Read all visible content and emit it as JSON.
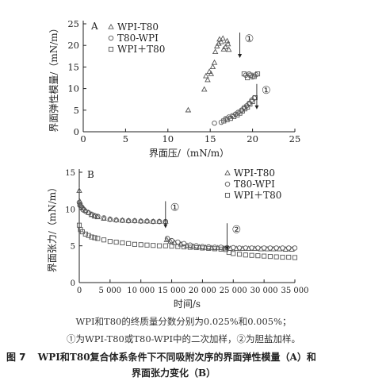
{
  "chart_data": [
    {
      "type": "scatter",
      "panel": "A",
      "xlabel": "界面压/（mN/m）",
      "ylabel": "界面弹性模量/（mN/m）",
      "xlim": [
        0,
        25
      ],
      "ylim": [
        0,
        25
      ],
      "xticks": [
        "0",
        "5",
        "10",
        "15",
        "20",
        "25"
      ],
      "yticks": [
        "0",
        "5",
        "10",
        "15",
        "20",
        "25"
      ],
      "legend_position": "top-right",
      "series": [
        {
          "name": "WPI-T80",
          "marker": "triangle",
          "points": [
            [
              12.4,
              5.0
            ],
            [
              14.3,
              9.8
            ],
            [
              14.5,
              12.9
            ],
            [
              14.7,
              12.0
            ],
            [
              14.9,
              13.9
            ],
            [
              15.1,
              13.4
            ],
            [
              15.3,
              15.0
            ],
            [
              15.5,
              16.0
            ],
            [
              15.6,
              18.5
            ],
            [
              15.8,
              19.8
            ],
            [
              16.0,
              20.4
            ],
            [
              16.1,
              21.4
            ],
            [
              16.3,
              20.8
            ],
            [
              16.5,
              21.6
            ],
            [
              16.6,
              19.1
            ],
            [
              16.8,
              19.6
            ],
            [
              17.0,
              21.0
            ],
            [
              17.1,
              20.3
            ],
            [
              17.2,
              19.0
            ]
          ]
        },
        {
          "name": "T80-WPI",
          "marker": "circle",
          "points": [
            [
              15.5,
              2.0
            ],
            [
              16.3,
              2.2
            ],
            [
              16.8,
              3.0
            ],
            [
              17.2,
              3.4
            ],
            [
              17.6,
              3.7
            ],
            [
              18.0,
              4.1
            ],
            [
              18.3,
              4.5
            ],
            [
              18.7,
              5.0
            ],
            [
              19.0,
              5.6
            ],
            [
              19.3,
              6.0
            ],
            [
              19.6,
              6.6
            ],
            [
              19.9,
              7.3
            ],
            [
              20.2,
              7.8
            ],
            [
              19.2,
              13.1
            ],
            [
              19.6,
              13.4
            ],
            [
              20.0,
              12.7
            ],
            [
              20.4,
              13.2
            ]
          ]
        },
        {
          "name": "WPI＋T80",
          "marker": "square",
          "points": [
            [
              16.6,
              2.5
            ],
            [
              17.0,
              2.8
            ],
            [
              17.4,
              3.1
            ],
            [
              17.8,
              3.5
            ],
            [
              18.2,
              3.9
            ],
            [
              18.5,
              4.3
            ],
            [
              18.8,
              4.8
            ],
            [
              19.1,
              5.3
            ],
            [
              19.4,
              5.7
            ],
            [
              19.7,
              6.4
            ],
            [
              20.0,
              7.0
            ],
            [
              20.3,
              7.9
            ],
            [
              19.0,
              13.4
            ],
            [
              19.4,
              12.5
            ],
            [
              19.8,
              13.1
            ],
            [
              20.2,
              12.8
            ],
            [
              20.6,
              13.4
            ]
          ]
        }
      ],
      "annotations": [
        {
          "text": "①",
          "x": 18.5,
          "y": 21.5
        },
        {
          "text": "①",
          "x": 20.5,
          "y": 9.6
        }
      ]
    },
    {
      "type": "scatter",
      "panel": "B",
      "xlabel": "时间/s",
      "ylabel": "界面张力/（mN/m）",
      "xlim": [
        0,
        35000
      ],
      "ylim": [
        0,
        15
      ],
      "xticks": [
        "0",
        "5 000",
        "10 000",
        "15 000",
        "20 000",
        "25 000",
        "30 000",
        "35 000"
      ],
      "yticks": [
        "0",
        "5",
        "10",
        "15"
      ],
      "legend_position": "top-right",
      "series": [
        {
          "name": "WPI-T80",
          "marker": "triangle",
          "points": [
            [
              0,
              12.5
            ],
            [
              100,
              11.0
            ],
            [
              200,
              10.6
            ],
            [
              400,
              10.4
            ],
            [
              700,
              10.1
            ],
            [
              1000,
              9.8
            ],
            [
              1500,
              9.5
            ],
            [
              2000,
              9.2
            ],
            [
              2500,
              9.0
            ],
            [
              3000,
              8.9
            ],
            [
              4000,
              8.7
            ],
            [
              5000,
              8.6
            ],
            [
              6000,
              8.5
            ],
            [
              7000,
              8.45
            ],
            [
              8000,
              8.4
            ],
            [
              9000,
              8.4
            ],
            [
              10000,
              8.35
            ],
            [
              11000,
              8.35
            ],
            [
              12000,
              8.3
            ],
            [
              13000,
              8.3
            ],
            [
              14000,
              8.3
            ],
            [
              14200,
              5.8
            ],
            [
              14800,
              5.6
            ],
            [
              15500,
              5.4
            ],
            [
              16500,
              5.2
            ],
            [
              17500,
              5.0
            ],
            [
              18500,
              4.9
            ],
            [
              19500,
              4.8
            ],
            [
              20500,
              4.75
            ],
            [
              21500,
              4.7
            ],
            [
              22500,
              4.7
            ],
            [
              23500,
              4.65
            ],
            [
              24500,
              4.6
            ],
            [
              25500,
              4.6
            ],
            [
              26500,
              4.6
            ],
            [
              27500,
              4.6
            ],
            [
              28500,
              4.6
            ],
            [
              29500,
              4.55
            ],
            [
              30500,
              4.55
            ],
            [
              31500,
              4.55
            ],
            [
              32500,
              4.55
            ],
            [
              33500,
              4.5
            ],
            [
              34500,
              4.5
            ]
          ]
        },
        {
          "name": "T80-WPI",
          "marker": "circle",
          "points": [
            [
              0,
              10.9
            ],
            [
              100,
              10.5
            ],
            [
              300,
              10.2
            ],
            [
              600,
              9.9
            ],
            [
              1000,
              9.7
            ],
            [
              1500,
              9.5
            ],
            [
              2000,
              9.3
            ],
            [
              2500,
              9.1
            ],
            [
              3000,
              9.0
            ],
            [
              4000,
              8.8
            ],
            [
              5000,
              8.6
            ],
            [
              6000,
              8.5
            ],
            [
              7000,
              8.45
            ],
            [
              8000,
              8.4
            ],
            [
              9000,
              8.4
            ],
            [
              10000,
              8.35
            ],
            [
              11000,
              8.35
            ],
            [
              12000,
              8.3
            ],
            [
              13000,
              8.3
            ],
            [
              14000,
              8.3
            ],
            [
              14300,
              6.0
            ],
            [
              15000,
              5.7
            ],
            [
              16000,
              5.5
            ],
            [
              17000,
              5.3
            ],
            [
              18000,
              5.1
            ],
            [
              19000,
              5.0
            ],
            [
              20000,
              4.9
            ],
            [
              21000,
              4.85
            ],
            [
              22000,
              4.8
            ],
            [
              23000,
              4.8
            ],
            [
              24000,
              4.75
            ],
            [
              25000,
              4.75
            ],
            [
              26000,
              4.7
            ],
            [
              27000,
              4.7
            ],
            [
              28000,
              4.7
            ],
            [
              29000,
              4.7
            ],
            [
              30000,
              4.7
            ],
            [
              31000,
              4.7
            ],
            [
              32000,
              4.7
            ],
            [
              33000,
              4.7
            ],
            [
              34000,
              4.7
            ],
            [
              35000,
              4.7
            ]
          ]
        },
        {
          "name": "WPI＋T80",
          "marker": "square",
          "points": [
            [
              0,
              7.8
            ],
            [
              200,
              7.2
            ],
            [
              500,
              6.9
            ],
            [
              1000,
              6.6
            ],
            [
              1500,
              6.4
            ],
            [
              2000,
              6.2
            ],
            [
              2500,
              6.1
            ],
            [
              3000,
              6.0
            ],
            [
              4000,
              5.8
            ],
            [
              5000,
              5.6
            ],
            [
              6000,
              5.5
            ],
            [
              7000,
              5.4
            ],
            [
              8000,
              5.3
            ],
            [
              9000,
              5.2
            ],
            [
              10000,
              5.15
            ],
            [
              11000,
              5.1
            ],
            [
              12000,
              5.05
            ],
            [
              13000,
              5.0
            ],
            [
              14000,
              5.0
            ],
            [
              15000,
              4.95
            ],
            [
              16000,
              4.9
            ],
            [
              17000,
              4.85
            ],
            [
              18000,
              4.8
            ],
            [
              19000,
              4.75
            ],
            [
              20000,
              4.7
            ],
            [
              21000,
              4.65
            ],
            [
              22000,
              4.6
            ],
            [
              23000,
              4.55
            ],
            [
              23800,
              4.5
            ],
            [
              24300,
              4.1
            ],
            [
              25000,
              3.95
            ],
            [
              26000,
              3.85
            ],
            [
              27000,
              3.75
            ],
            [
              28000,
              3.7
            ],
            [
              29000,
              3.65
            ],
            [
              30000,
              3.6
            ],
            [
              31000,
              3.55
            ],
            [
              32000,
              3.5
            ],
            [
              33000,
              3.45
            ],
            [
              34000,
              3.45
            ],
            [
              35000,
              3.4
            ]
          ]
        }
      ],
      "annotations": [
        {
          "text": "①",
          "x": 14000,
          "y": 10.2
        },
        {
          "text": "②",
          "x": 24000,
          "y": 7.2
        }
      ]
    }
  ],
  "notes": {
    "line1": "WPI和T80的终质量分数分别为0.025%和0.005%；",
    "line2": "①为WPI-T80或T80-WPI中的二次加样，②为胆盐加样。"
  },
  "caption": {
    "label": "图 7",
    "line1": "WPI和T80复合体系条件下不同吸附次序的界面弹性模量（A）和",
    "line2": "界面张力变化（B）"
  }
}
